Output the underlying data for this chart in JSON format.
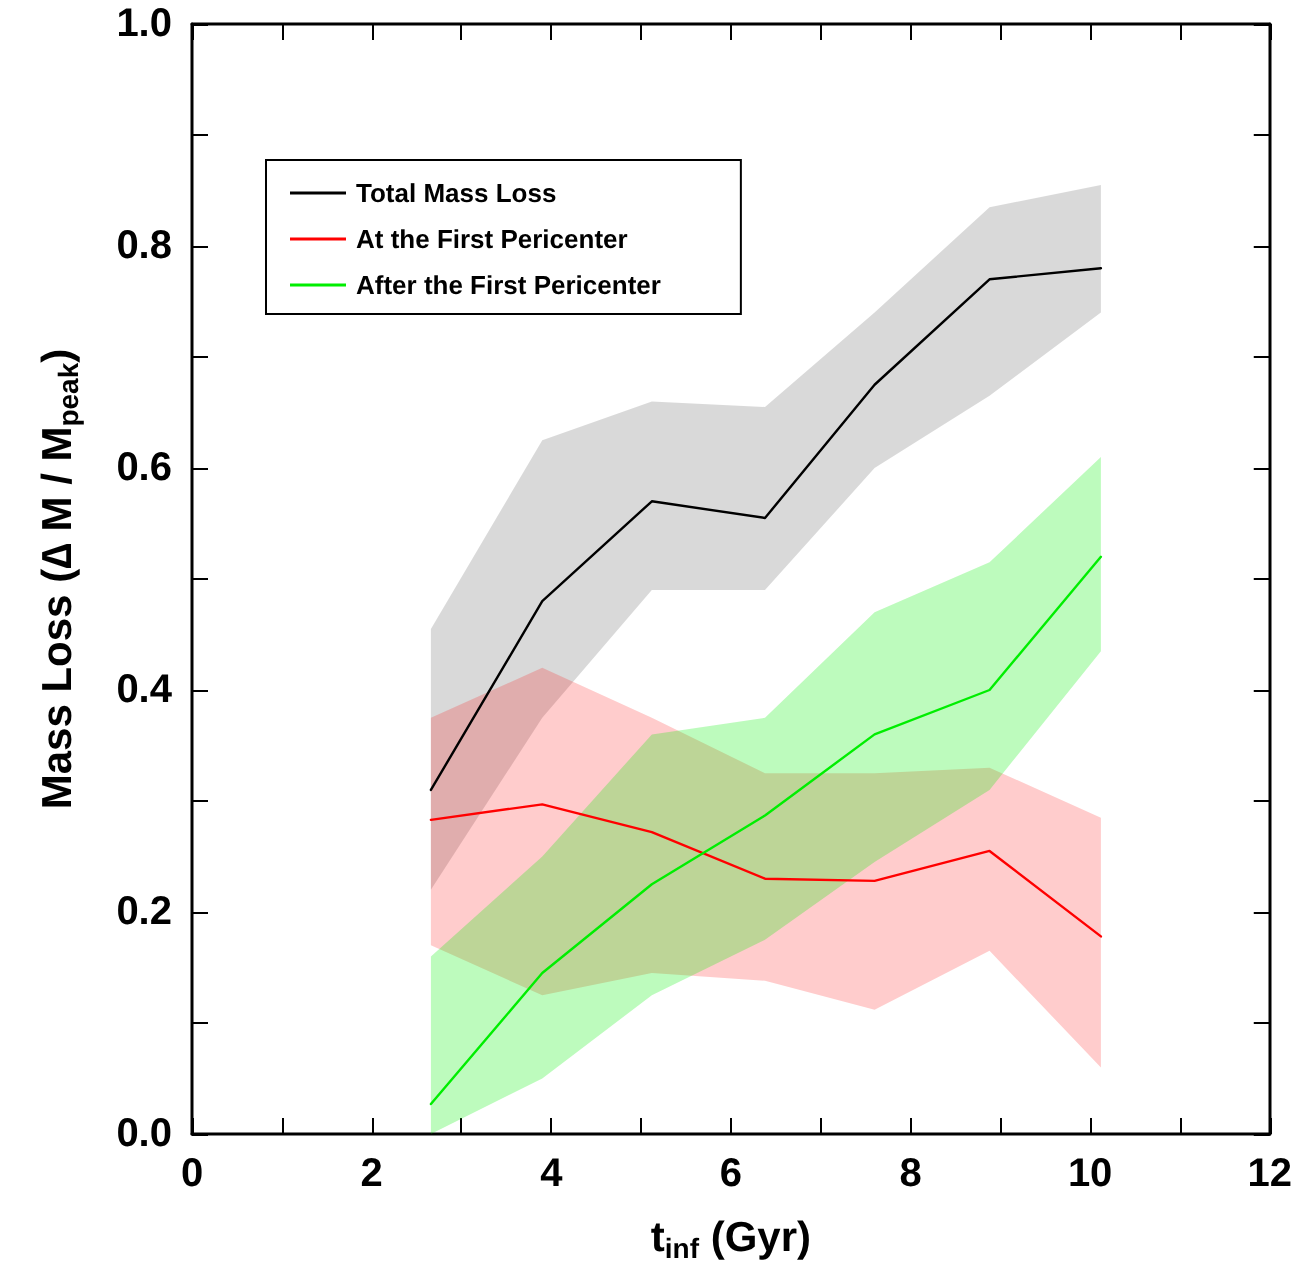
{
  "chart_data": {
    "type": "line",
    "xlabel": "t$_{inf}$ (Gyr)",
    "ylabel": "Mass Loss (∆ M / M$_{peak}$)",
    "x": [
      2.66,
      3.9,
      5.12,
      6.38,
      7.6,
      8.88,
      10.12
    ],
    "series": [
      {
        "name": "Total Mass Loss",
        "color": "#000000",
        "values": [
          0.31,
          0.48,
          0.57,
          0.555,
          0.675,
          0.77,
          0.78
        ],
        "lower": [
          0.22,
          0.375,
          0.49,
          0.49,
          0.6,
          0.665,
          0.74
        ],
        "upper": [
          0.455,
          0.625,
          0.66,
          0.655,
          0.74,
          0.835,
          0.855
        ]
      },
      {
        "name": "At the First Pericenter",
        "color": "#ff0000",
        "values": [
          0.283,
          0.297,
          0.272,
          0.23,
          0.228,
          0.255,
          0.178
        ],
        "lower": [
          0.17,
          0.125,
          0.145,
          0.138,
          0.112,
          0.165,
          0.06
        ],
        "upper": [
          0.375,
          0.42,
          0.375,
          0.325,
          0.325,
          0.33,
          0.285
        ]
      },
      {
        "name": "After the First Pericenter",
        "color": "#00ee00",
        "values": [
          0.027,
          0.145,
          0.225,
          0.287,
          0.36,
          0.4,
          0.52
        ],
        "lower": [
          0.0,
          0.05,
          0.125,
          0.175,
          0.245,
          0.31,
          0.435
        ],
        "upper": [
          0.16,
          0.25,
          0.36,
          0.375,
          0.47,
          0.515,
          0.61
        ]
      }
    ],
    "xlim": [
      0,
      12
    ],
    "xticks": [
      0,
      {
        "value": 1,
        "label": null
      },
      2,
      {
        "value": 3,
        "label": null
      },
      4,
      {
        "value": 5,
        "label": null
      },
      6,
      {
        "value": 7,
        "label": null
      },
      8,
      {
        "value": 9,
        "label": null
      },
      10,
      {
        "value": 11,
        "label": null
      },
      12
    ],
    "ylim": [
      0,
      1
    ],
    "yticks": [
      {
        "value": 0,
        "label": "0.0"
      },
      {
        "value": 0.1,
        "label": null
      },
      0.2,
      {
        "value": 0.3,
        "label": null
      },
      0.4,
      {
        "value": 0.5,
        "label": null
      },
      0.6,
      {
        "value": 0.7,
        "label": null
      },
      0.8,
      {
        "value": 0.9,
        "label": null
      },
      {
        "value": 1,
        "label": "1.0"
      }
    ],
    "grid": false,
    "legend": "top left",
    "marker": "none",
    "line_style": "solid"
  }
}
